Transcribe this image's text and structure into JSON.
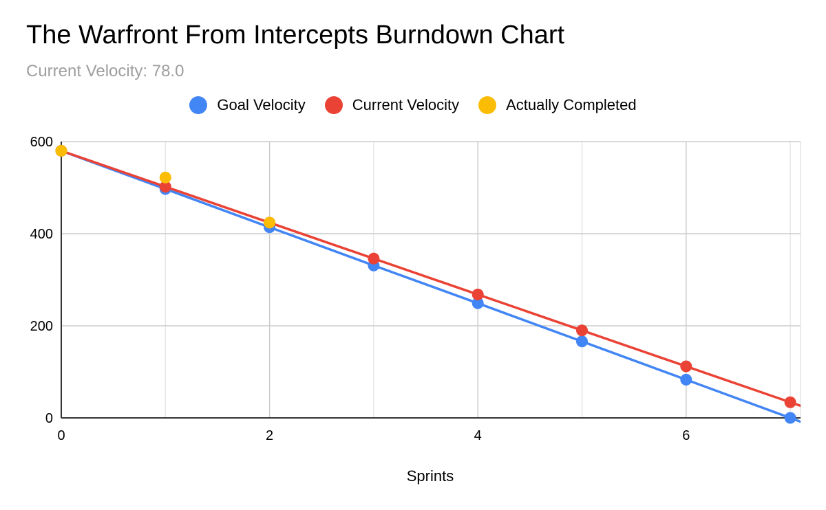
{
  "chart_data": {
    "type": "line",
    "title": "The Warfront From Intercepts Burndown Chart",
    "subtitle": "Current Velocity: 78.0",
    "xlabel": "Sprints",
    "ylabel": "",
    "xlim": [
      0,
      7.1
    ],
    "ylim": [
      0,
      600
    ],
    "x_ticks": [
      "0",
      "2",
      "4",
      "6"
    ],
    "y_ticks": [
      "0",
      "200",
      "400",
      "600"
    ],
    "grid": true,
    "legend_position": "top",
    "series": [
      {
        "name": "Goal Velocity",
        "color": "#4285F4",
        "x": [
          0,
          1,
          2,
          3,
          4,
          5,
          6,
          7
        ],
        "y": [
          580,
          497,
          414,
          331,
          249,
          166,
          83,
          0
        ],
        "line": true
      },
      {
        "name": "Current Velocity",
        "color": "#EA4335",
        "x": [
          0,
          1,
          2,
          3,
          4,
          5,
          6,
          7
        ],
        "y": [
          580,
          502,
          424,
          346,
          268,
          190,
          112,
          34
        ],
        "line": true
      },
      {
        "name": "Actually Completed",
        "color": "#FBBC04",
        "x": [
          0,
          1,
          2
        ],
        "y": [
          580,
          522,
          424
        ],
        "line": false
      }
    ]
  }
}
